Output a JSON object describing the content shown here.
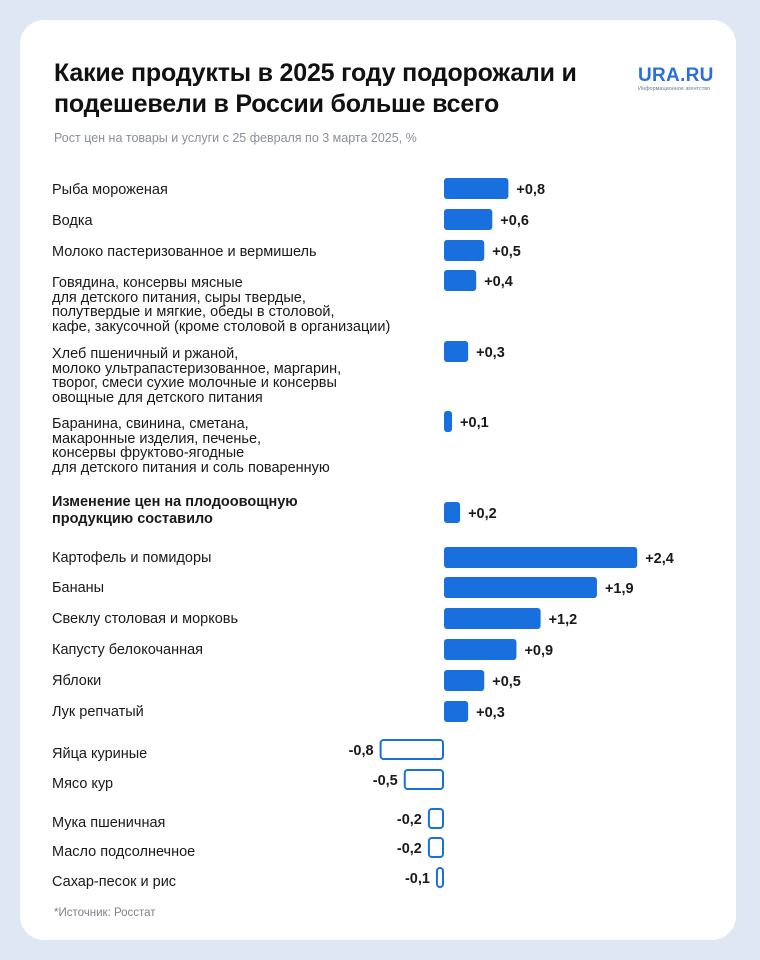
{
  "title": "Какие продукты в 2025 году подорожали и подешевели в России больше всего",
  "subtitle": "Рост цен на товары и услуги с 25 февраля по 3 марта 2025, %",
  "logo": {
    "name": "URA.RU",
    "tagline": "Информационное агентство"
  },
  "source": "*Источник: Росстат",
  "colors": {
    "positive": "#1a6fdf",
    "negative_stroke": "#1a6fdf",
    "negative_fill": "#ffffff"
  },
  "chart_data": {
    "type": "bar",
    "orientation": "horizontal",
    "unit": "%",
    "title": "Какие продукты в 2025 году подорожали и подешевели в России больше всего",
    "categories": [
      "Рыба мороженая",
      "Водка",
      "Молоко пастеризованное и вермишель",
      "Говядина, консервы мясные\nдля детского питания, сыры твердые,\nполутвердые и мягкие, обеды в столовой,\nкафе, закусочной (кроме столовой в организации)",
      "Хлеб пшеничный и ржаной,\nмолоко ультрапастеризованное, маргарин,\nтворог, смеси сухие молочные и консервы\nовощные для детского питания",
      "Баранина, свинина, сметана,\nмакаронные изделия, печенье,\nконсервы фруктово-ягодные\nдля детского питания и соль поваренную",
      "Изменение цен на плодоовощную\nпродукцию составило",
      "Картофель и помидоры",
      "Бананы",
      "Свеклу столовая и морковь",
      "Капусту белокочанная",
      "Яблоки",
      "Лук репчатый",
      "Яйца куриные",
      "Мясо кур",
      "Мука пшеничная",
      "Масло подсолнечное",
      "Сахар-песок и рис"
    ],
    "values": [
      0.8,
      0.6,
      0.5,
      0.4,
      0.3,
      0.1,
      0.2,
      2.4,
      1.9,
      1.2,
      0.9,
      0.5,
      0.3,
      -0.8,
      -0.5,
      -0.2,
      -0.2,
      -0.1
    ],
    "labels": [
      "+0,8",
      "+0,6",
      "+0,5",
      "+0,4",
      "+0,3",
      "+0,1",
      "+0,2",
      "+2,4",
      "+1,9",
      "+1,2",
      "+0,9",
      "+0,5",
      "+0,3",
      "-0,8",
      "-0,5",
      "-0,2",
      "-0,2",
      "-0,1"
    ],
    "emphasized": [
      false,
      false,
      false,
      false,
      false,
      false,
      true,
      false,
      false,
      false,
      false,
      false,
      false,
      false,
      false,
      false,
      false,
      false
    ],
    "xlim": [
      -1.0,
      2.4
    ]
  }
}
